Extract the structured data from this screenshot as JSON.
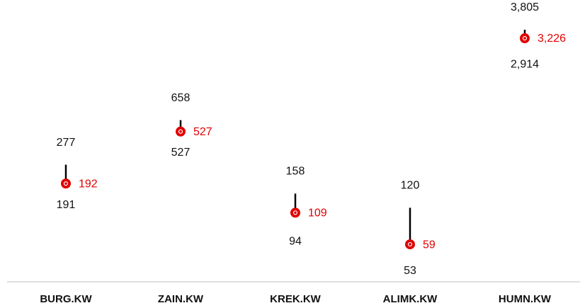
{
  "chart_data": {
    "type": "range",
    "categories": [
      "BURG.KW",
      "ZAIN.KW",
      "KREK.KW",
      "ALIMK.KW",
      "HUMN.KW"
    ],
    "log": true,
    "ylim": [
      28.5,
      6780
    ],
    "series": [
      {
        "name": "High",
        "color": "#000000",
        "values": [
          277,
          658,
          158,
          120,
          3805
        ],
        "value_labels": [
          "277",
          "658",
          "158",
          "120",
          "3,805"
        ]
      },
      {
        "name": "Low",
        "color": "#000000",
        "values": [
          191,
          527,
          94,
          53,
          2914
        ],
        "value_labels": [
          "191",
          "527",
          "94",
          "53",
          "2,914"
        ]
      },
      {
        "name": "Current",
        "color": "#e00000",
        "values": [
          192,
          527,
          109,
          59,
          3226
        ],
        "value_labels": [
          "192",
          "527",
          "109",
          "59",
          "3,226"
        ]
      }
    ]
  }
}
